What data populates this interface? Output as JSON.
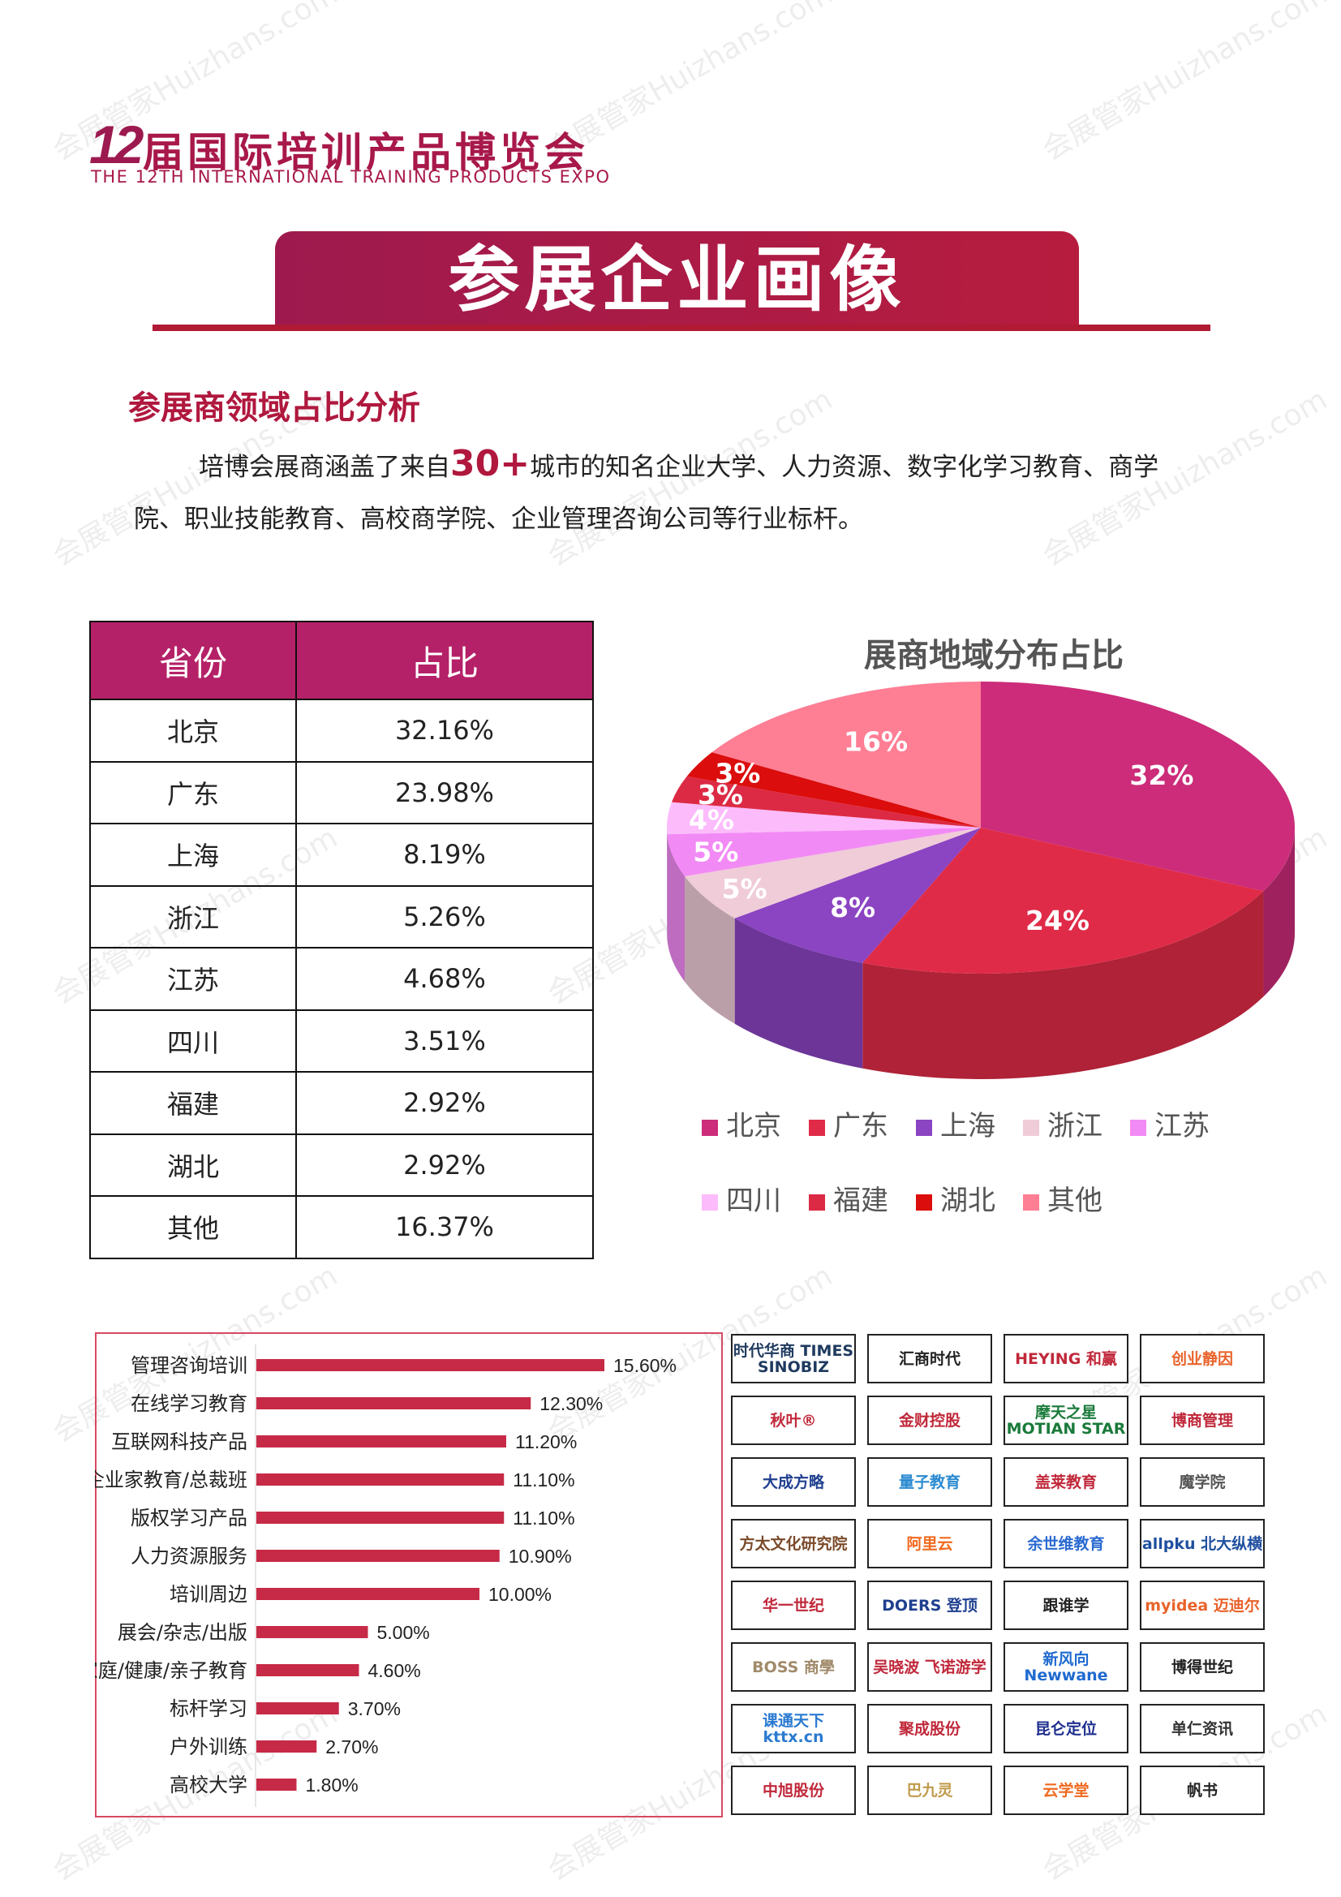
{
  "header": {
    "logo_number": "12",
    "logo_cn": "届国际培训产品博览会",
    "logo_en": "THE 12TH INTERNATIONAL TRAINING PRODUCTS EXPO"
  },
  "banner": {
    "title": "参展企业画像"
  },
  "section": {
    "title": "参展商领域占比分析",
    "para_line1_prefix": "培博会展商涵盖了来自",
    "para_highlight": "30+",
    "para_line1_suffix": "城市的知名企业大学、人力资源、数字化学习教育、商学",
    "para_line2": "院、职业技能教育、高校商学院、企业管理咨询公司等行业标杆。"
  },
  "table": {
    "headers": [
      "省份",
      "占比"
    ],
    "rows": [
      [
        "北京",
        "32.16%"
      ],
      [
        "广东",
        "23.98%"
      ],
      [
        "上海",
        "8.19%"
      ],
      [
        "浙江",
        "5.26%"
      ],
      [
        "江苏",
        "4.68%"
      ],
      [
        "四川",
        "3.51%"
      ],
      [
        "福建",
        "2.92%"
      ],
      [
        "湖北",
        "2.92%"
      ],
      [
        "其他",
        "16.37%"
      ]
    ]
  },
  "chart_data": [
    {
      "type": "pie",
      "style": "3d",
      "title": "展商地域分布占比",
      "legend_placement": "bottom",
      "categories": [
        "北京",
        "广东",
        "上海",
        "浙江",
        "江苏",
        "四川",
        "福建",
        "湖北",
        "其他"
      ],
      "values": [
        32.16,
        23.98,
        8.19,
        5.26,
        4.68,
        3.51,
        2.92,
        2.92,
        16.37
      ],
      "data_labels": [
        "32%",
        "24%",
        "8%",
        "5%",
        "5%",
        "4%",
        "3%",
        "3%",
        "16%"
      ],
      "colors": [
        "#cc2c7a",
        "#e02b48",
        "#8b44c2",
        "#f0ccd8",
        "#f28af5",
        "#fcbcfc",
        "#dc2a44",
        "#db0d0d",
        "#fe7e94"
      ]
    },
    {
      "type": "bar",
      "orientation": "horizontal",
      "color": "#c62a47",
      "categories": [
        "管理咨询培训",
        "在线学习教育",
        "互联网科技产品",
        "企业家教育/总裁班",
        "版权学习产品",
        "人力资源服务",
        "培训周边",
        "展会/杂志/出版",
        "家庭/健康/亲子教育",
        "标杆学习",
        "户外训练",
        "高校大学"
      ],
      "values": [
        15.6,
        12.3,
        11.2,
        11.1,
        11.1,
        10.9,
        10.0,
        5.0,
        4.6,
        3.7,
        2.7,
        1.8
      ],
      "data_labels": [
        "15.60%",
        "12.30%",
        "11.20%",
        "11.10%",
        "11.10%",
        "10.90%",
        "10.00%",
        "5.00%",
        "4.60%",
        "3.70%",
        "2.70%",
        "1.80%"
      ]
    }
  ],
  "logos": [
    {
      "name": "时代华商 TIMES SINOBIZ",
      "color": "#1f3a5f"
    },
    {
      "name": "汇商时代",
      "color": "#222"
    },
    {
      "name": "HEYING 和赢",
      "color": "#c0283a"
    },
    {
      "name": "创业静因",
      "color": "#e8632b"
    },
    {
      "name": "秋叶®",
      "color": "#c0283a"
    },
    {
      "name": "金财控股",
      "color": "#c0283a"
    },
    {
      "name": "摩天之星 MOTIAN STAR",
      "color": "#1a7a3a"
    },
    {
      "name": "博商管理",
      "color": "#c0283a"
    },
    {
      "name": "大成方略",
      "color": "#1f3f8f"
    },
    {
      "name": "量子教育",
      "color": "#2a8ad0"
    },
    {
      "name": "盖莱教育",
      "color": "#c0283a"
    },
    {
      "name": "魔学院",
      "color": "#555"
    },
    {
      "name": "方太文化研究院",
      "color": "#7a4a2a"
    },
    {
      "name": "阿里云",
      "color": "#f06a1e"
    },
    {
      "name": "余世维教育",
      "color": "#2a6ad0"
    },
    {
      "name": "allpku 北大纵横",
      "color": "#1f4f9f"
    },
    {
      "name": "华一世纪",
      "color": "#c0283a"
    },
    {
      "name": "DOERS 登顶",
      "color": "#1f3f8f"
    },
    {
      "name": "跟谁学",
      "color": "#222"
    },
    {
      "name": "myidea 迈迪尔",
      "color": "#e8632b"
    },
    {
      "name": "BOSS 商學",
      "color": "#a08a6a"
    },
    {
      "name": "吴晓波 飞诺游学",
      "color": "#c0283a"
    },
    {
      "name": "新风向 Newwane",
      "color": "#1f6ad0"
    },
    {
      "name": "博得世纪",
      "color": "#222"
    },
    {
      "name": "课通天下 kttx.cn",
      "color": "#2a7ad0"
    },
    {
      "name": "聚成股份",
      "color": "#c0283a"
    },
    {
      "name": "昆仑定位",
      "color": "#1f2f8f"
    },
    {
      "name": "单仁资讯",
      "color": "#333"
    },
    {
      "name": "中旭股份",
      "color": "#c0283a"
    },
    {
      "name": "巴九灵",
      "color": "#c09a4a"
    },
    {
      "name": "云学堂",
      "color": "#f06a1e"
    },
    {
      "name": "帆书",
      "color": "#222"
    }
  ],
  "watermark": "会展管家Huizhans.com"
}
